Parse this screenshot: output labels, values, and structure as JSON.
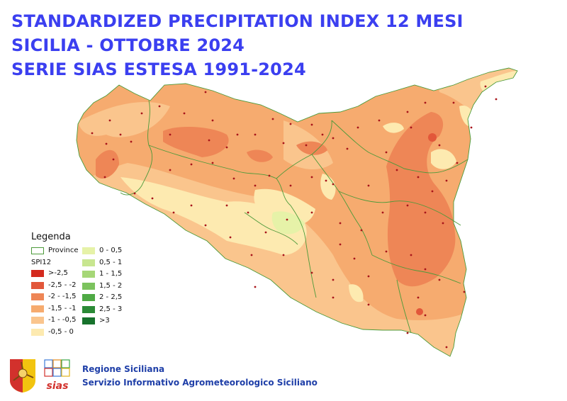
{
  "title": {
    "line1": "STANDARDIZED PRECIPITATION INDEX 12 MESI",
    "line2": "SICILIA - OTTOBRE 2024",
    "line3": "SERIE SIAS ESTESA 1991-2024"
  },
  "legend": {
    "title": "Legenda",
    "province_label": "Province",
    "spi_label": "SPI12",
    "classes_dry": [
      {
        "label": ">-2,5",
        "color": "#d42a1e"
      },
      {
        "label": "-2,5 - -2",
        "color": "#e2573a"
      },
      {
        "label": "-2 - -1,5",
        "color": "#ee8656"
      },
      {
        "label": "-1,5 - -1",
        "color": "#f6ab6f"
      },
      {
        "label": "-1 - -0,5",
        "color": "#fac58d"
      },
      {
        "label": "-0,5 - 0",
        "color": "#fdeab0"
      }
    ],
    "classes_wet": [
      {
        "label": "0 - 0,5",
        "color": "#e6f2a8"
      },
      {
        "label": "0,5 - 1",
        "color": "#c8e690"
      },
      {
        "label": "1 - 1,5",
        "color": "#a6d777"
      },
      {
        "label": "1,5 - 2",
        "color": "#7cc35e"
      },
      {
        "label": "2 - 2,5",
        "color": "#4faa45"
      },
      {
        "label": "2,5 - 3",
        "color": "#2b8a36"
      },
      {
        "label": ">3",
        "color": "#17722c"
      }
    ],
    "province_color": "#4c9a3a"
  },
  "footer": {
    "org": "Regione Siciliana",
    "service": "Servizio Informativo Agrometeorologico Siciliano",
    "logo_text": "sias"
  }
}
